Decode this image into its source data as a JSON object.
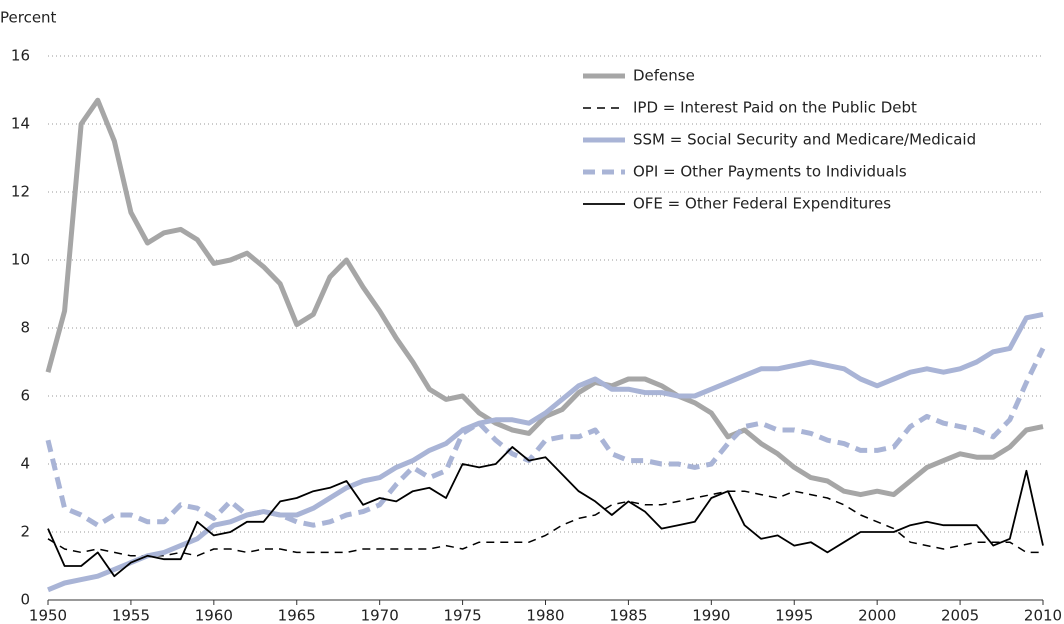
{
  "chart_data": {
    "type": "line",
    "y_label": "Percent",
    "x": [
      1950,
      1951,
      1952,
      1953,
      1954,
      1955,
      1956,
      1957,
      1958,
      1959,
      1960,
      1961,
      1962,
      1963,
      1964,
      1965,
      1966,
      1967,
      1968,
      1969,
      1970,
      1971,
      1972,
      1973,
      1974,
      1975,
      1976,
      1977,
      1978,
      1979,
      1980,
      1981,
      1982,
      1983,
      1984,
      1985,
      1986,
      1987,
      1988,
      1989,
      1990,
      1991,
      1992,
      1993,
      1994,
      1995,
      1996,
      1997,
      1998,
      1999,
      2000,
      2001,
      2002,
      2003,
      2004,
      2005,
      2006,
      2007,
      2008,
      2009,
      2010
    ],
    "xlim": [
      1950,
      2010
    ],
    "xticks": [
      1950,
      1955,
      1960,
      1965,
      1970,
      1975,
      1980,
      1985,
      1990,
      1995,
      2000,
      2005,
      2010
    ],
    "ylim": [
      0,
      16
    ],
    "yticks": [
      0,
      2,
      4,
      6,
      8,
      10,
      12,
      14,
      16
    ],
    "grid": true,
    "series": [
      {
        "name": "Defense",
        "color": "#a6a6a6",
        "style": "solid",
        "line_width": 5,
        "values": [
          6.7,
          8.5,
          14.0,
          14.7,
          13.5,
          11.4,
          10.5,
          10.8,
          10.9,
          10.6,
          9.9,
          10.0,
          10.2,
          9.8,
          9.3,
          8.1,
          8.4,
          9.5,
          10.0,
          9.2,
          8.5,
          7.7,
          7.0,
          6.2,
          5.9,
          6.0,
          5.5,
          5.2,
          5.0,
          4.9,
          5.4,
          5.6,
          6.1,
          6.4,
          6.3,
          6.5,
          6.5,
          6.3,
          6.0,
          5.8,
          5.5,
          4.8,
          5.0,
          4.6,
          4.3,
          3.9,
          3.6,
          3.5,
          3.2,
          3.1,
          3.2,
          3.1,
          3.5,
          3.9,
          4.1,
          4.3,
          4.2,
          4.2,
          4.5,
          5.0,
          5.1
        ]
      },
      {
        "name": "IPD = Interest Paid on the Public Debt",
        "color": "#000000",
        "style": "dashed",
        "line_width": 1.5,
        "values": [
          1.8,
          1.5,
          1.4,
          1.5,
          1.4,
          1.3,
          1.3,
          1.3,
          1.4,
          1.3,
          1.5,
          1.5,
          1.4,
          1.5,
          1.5,
          1.4,
          1.4,
          1.4,
          1.4,
          1.5,
          1.5,
          1.5,
          1.5,
          1.5,
          1.6,
          1.5,
          1.7,
          1.7,
          1.7,
          1.7,
          1.9,
          2.2,
          2.4,
          2.5,
          2.8,
          2.9,
          2.8,
          2.8,
          2.9,
          3.0,
          3.1,
          3.2,
          3.2,
          3.1,
          3.0,
          3.2,
          3.1,
          3.0,
          2.8,
          2.5,
          2.3,
          2.1,
          1.7,
          1.6,
          1.5,
          1.6,
          1.7,
          1.7,
          1.7,
          1.4,
          1.4
        ]
      },
      {
        "name": "SSM = Social Security and Medicare/Medicaid",
        "color": "#a9b4d6",
        "style": "solid",
        "line_width": 5,
        "values": [
          0.3,
          0.5,
          0.6,
          0.7,
          0.9,
          1.1,
          1.3,
          1.4,
          1.6,
          1.8,
          2.2,
          2.3,
          2.5,
          2.6,
          2.5,
          2.5,
          2.7,
          3.0,
          3.3,
          3.5,
          3.6,
          3.9,
          4.1,
          4.4,
          4.6,
          5.0,
          5.2,
          5.3,
          5.3,
          5.2,
          5.5,
          5.9,
          6.3,
          6.5,
          6.2,
          6.2,
          6.1,
          6.1,
          6.0,
          6.0,
          6.2,
          6.4,
          6.6,
          6.8,
          6.8,
          6.9,
          7.0,
          6.9,
          6.8,
          6.5,
          6.3,
          6.5,
          6.7,
          6.8,
          6.7,
          6.8,
          7.0,
          7.3,
          7.4,
          8.3,
          8.4
        ]
      },
      {
        "name": "OPI = Other Payments to Individuals",
        "color": "#a9b4d6",
        "style": "dashed",
        "line_width": 5,
        "values": [
          4.7,
          2.7,
          2.5,
          2.2,
          2.5,
          2.5,
          2.3,
          2.3,
          2.8,
          2.7,
          2.4,
          2.9,
          2.5,
          2.6,
          2.5,
          2.3,
          2.2,
          2.3,
          2.5,
          2.6,
          2.8,
          3.4,
          3.9,
          3.6,
          3.8,
          4.9,
          5.2,
          4.7,
          4.3,
          4.1,
          4.7,
          4.8,
          4.8,
          5.0,
          4.3,
          4.1,
          4.1,
          4.0,
          4.0,
          3.9,
          4.0,
          4.6,
          5.1,
          5.2,
          5.0,
          5.0,
          4.9,
          4.7,
          4.6,
          4.4,
          4.4,
          4.5,
          5.1,
          5.4,
          5.2,
          5.1,
          5.0,
          4.8,
          5.3,
          6.4,
          7.4
        ]
      },
      {
        "name": "OFE = Other Federal Expenditures",
        "color": "#000000",
        "style": "solid",
        "line_width": 1.8,
        "values": [
          2.1,
          1.0,
          1.0,
          1.4,
          0.7,
          1.1,
          1.3,
          1.2,
          1.2,
          2.3,
          1.9,
          2.0,
          2.3,
          2.3,
          2.9,
          3.0,
          3.2,
          3.3,
          3.5,
          2.8,
          3.0,
          2.9,
          3.2,
          3.3,
          3.0,
          4.0,
          3.9,
          4.0,
          4.5,
          4.1,
          4.2,
          3.7,
          3.2,
          2.9,
          2.5,
          2.9,
          2.6,
          2.1,
          2.2,
          2.3,
          3.0,
          3.2,
          2.2,
          1.8,
          1.9,
          1.6,
          1.7,
          1.4,
          1.7,
          2.0,
          2.0,
          2.0,
          2.2,
          2.3,
          2.2,
          2.2,
          2.2,
          1.6,
          1.8,
          3.8,
          1.6
        ]
      }
    ]
  }
}
